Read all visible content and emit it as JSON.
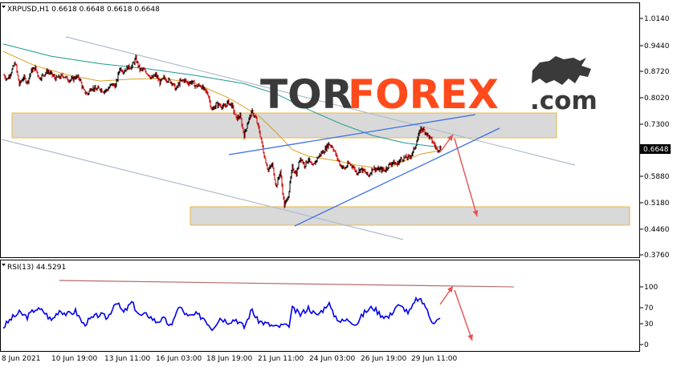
{
  "price_panel": {
    "header": "XRPUSD,H1  0.6618 0.6648 0.6618 0.6648",
    "current_price_label": "0.6648",
    "y_ticks": [
      "1.0140",
      "0.9440",
      "0.8720",
      "0.8020",
      "0.7300",
      "0.6580",
      "0.5880",
      "0.5180",
      "0.4460",
      "0.3760"
    ]
  },
  "rsi_panel": {
    "header": "RSI(13) 44.5291",
    "y_ticks": [
      "100",
      "70",
      "30",
      "0"
    ]
  },
  "x_ticks": [
    "8 Jun 2021",
    "10 Jun 19:00",
    "13 Jun 11:00",
    "16 Jun 03:00",
    "18 Jun 19:00",
    "21 Jun 11:00",
    "24 Jun 03:00",
    "26 Jun 19:00",
    "29 Jun 11:00"
  ],
  "watermark": {
    "part1": "TOR",
    "part2": "FOREX",
    "part3": ".com",
    "color_dark": "#3a3a3a",
    "color_accent": "#ff4a1c"
  },
  "colors": {
    "bull": "#000000",
    "bear": "#cc0000",
    "ma_fast": "#d8a020",
    "ma_slow": "#1a9a90",
    "trend_blue": "#3a6ee8",
    "channel_grey": "#b0bccd",
    "zone_fill": "#d9d9d9",
    "zone_border": "#e8b84a",
    "arrow": "#e85050",
    "rsi_line": "#0000ee",
    "rsi_resistance": "#b86b6b"
  },
  "chart_data": {
    "type": "candlestick",
    "symbol": "XRPUSD",
    "timeframe": "H1",
    "last_ohlc": {
      "open": 0.6618,
      "high": 0.6648,
      "low": 0.6618,
      "close": 0.6648
    },
    "ylim": [
      0.376,
      1.014
    ],
    "close_path": [
      [
        0,
        0.862
      ],
      [
        5,
        0.85
      ],
      [
        10,
        0.87
      ],
      [
        15,
        0.895
      ],
      [
        20,
        0.835
      ],
      [
        25,
        0.855
      ],
      [
        30,
        0.842
      ],
      [
        35,
        0.873
      ],
      [
        40,
        0.88
      ],
      [
        45,
        0.852
      ],
      [
        50,
        0.862
      ],
      [
        55,
        0.872
      ],
      [
        60,
        0.863
      ],
      [
        65,
        0.852
      ],
      [
        70,
        0.855
      ],
      [
        75,
        0.86
      ],
      [
        80,
        0.85
      ],
      [
        85,
        0.848
      ],
      [
        90,
        0.856
      ],
      [
        95,
        0.853
      ],
      [
        100,
        0.818
      ],
      [
        105,
        0.81
      ],
      [
        110,
        0.828
      ],
      [
        115,
        0.822
      ],
      [
        120,
        0.825
      ],
      [
        125,
        0.818
      ],
      [
        130,
        0.822
      ],
      [
        135,
        0.836
      ],
      [
        140,
        0.832
      ],
      [
        145,
        0.88
      ],
      [
        150,
        0.872
      ],
      [
        155,
        0.882
      ],
      [
        160,
        0.884
      ],
      [
        165,
        0.905
      ],
      [
        170,
        0.876
      ],
      [
        175,
        0.874
      ],
      [
        180,
        0.866
      ],
      [
        185,
        0.852
      ],
      [
        190,
        0.862
      ],
      [
        195,
        0.84
      ],
      [
        200,
        0.853
      ],
      [
        205,
        0.848
      ],
      [
        210,
        0.842
      ],
      [
        215,
        0.822
      ],
      [
        220,
        0.843
      ],
      [
        225,
        0.848
      ],
      [
        230,
        0.84
      ],
      [
        235,
        0.843
      ],
      [
        240,
        0.83
      ],
      [
        245,
        0.834
      ],
      [
        250,
        0.822
      ],
      [
        255,
        0.81
      ],
      [
        260,
        0.765
      ],
      [
        265,
        0.782
      ],
      [
        270,
        0.78
      ],
      [
        275,
        0.774
      ],
      [
        280,
        0.788
      ],
      [
        285,
        0.778
      ],
      [
        290,
        0.744
      ],
      [
        295,
        0.75
      ],
      [
        300,
        0.698
      ],
      [
        305,
        0.738
      ],
      [
        310,
        0.762
      ],
      [
        315,
        0.741
      ],
      [
        320,
        0.7
      ],
      [
        325,
        0.644
      ],
      [
        330,
        0.604
      ],
      [
        335,
        0.62
      ],
      [
        340,
        0.56
      ],
      [
        345,
        0.602
      ],
      [
        350,
        0.508
      ],
      [
        355,
        0.536
      ],
      [
        360,
        0.612
      ],
      [
        365,
        0.594
      ],
      [
        370,
        0.64
      ],
      [
        375,
        0.618
      ],
      [
        380,
        0.634
      ],
      [
        385,
        0.612
      ],
      [
        390,
        0.633
      ],
      [
        395,
        0.648
      ],
      [
        400,
        0.658
      ],
      [
        405,
        0.676
      ],
      [
        410,
        0.668
      ],
      [
        415,
        0.641
      ],
      [
        420,
        0.618
      ],
      [
        425,
        0.608
      ],
      [
        430,
        0.622
      ],
      [
        435,
        0.616
      ],
      [
        440,
        0.598
      ],
      [
        445,
        0.608
      ],
      [
        450,
        0.6
      ],
      [
        455,
        0.589
      ],
      [
        460,
        0.61
      ],
      [
        465,
        0.606
      ],
      [
        470,
        0.606
      ],
      [
        475,
        0.604
      ],
      [
        480,
        0.618
      ],
      [
        485,
        0.626
      ],
      [
        490,
        0.62
      ],
      [
        495,
        0.634
      ],
      [
        500,
        0.638
      ],
      [
        505,
        0.638
      ],
      [
        510,
        0.652
      ],
      [
        515,
        0.682
      ],
      [
        520,
        0.718
      ],
      [
        525,
        0.71
      ],
      [
        530,
        0.695
      ],
      [
        535,
        0.68
      ],
      [
        540,
        0.66
      ],
      [
        545,
        0.665
      ]
    ],
    "ma_fast": [
      [
        0,
        0.925
      ],
      [
        40,
        0.886
      ],
      [
        80,
        0.862
      ],
      [
        120,
        0.845
      ],
      [
        160,
        0.85
      ],
      [
        200,
        0.852
      ],
      [
        240,
        0.838
      ],
      [
        280,
        0.8
      ],
      [
        300,
        0.775
      ],
      [
        320,
        0.748
      ],
      [
        340,
        0.706
      ],
      [
        360,
        0.66
      ],
      [
        380,
        0.642
      ],
      [
        400,
        0.635
      ],
      [
        420,
        0.628
      ],
      [
        440,
        0.618
      ],
      [
        460,
        0.612
      ],
      [
        480,
        0.61
      ],
      [
        500,
        0.63
      ],
      [
        520,
        0.648
      ],
      [
        545,
        0.658
      ]
    ],
    "ma_slow": [
      [
        0,
        0.945
      ],
      [
        60,
        0.912
      ],
      [
        120,
        0.892
      ],
      [
        180,
        0.878
      ],
      [
        240,
        0.86
      ],
      [
        300,
        0.838
      ],
      [
        340,
        0.81
      ],
      [
        380,
        0.768
      ],
      [
        420,
        0.73
      ],
      [
        460,
        0.698
      ],
      [
        500,
        0.678
      ],
      [
        545,
        0.666
      ]
    ],
    "rsi": [
      [
        0,
        30
      ],
      [
        10,
        45
      ],
      [
        20,
        55
      ],
      [
        30,
        48
      ],
      [
        40,
        62
      ],
      [
        50,
        58
      ],
      [
        60,
        42
      ],
      [
        70,
        60
      ],
      [
        80,
        52
      ],
      [
        90,
        58
      ],
      [
        100,
        35
      ],
      [
        110,
        45
      ],
      [
        120,
        52
      ],
      [
        130,
        46
      ],
      [
        140,
        75
      ],
      [
        150,
        55
      ],
      [
        160,
        73
      ],
      [
        170,
        50
      ],
      [
        180,
        52
      ],
      [
        190,
        40
      ],
      [
        200,
        44
      ],
      [
        210,
        30
      ],
      [
        215,
        58
      ],
      [
        220,
        65
      ],
      [
        230,
        48
      ],
      [
        240,
        52
      ],
      [
        250,
        46
      ],
      [
        260,
        28
      ],
      [
        270,
        46
      ],
      [
        280,
        40
      ],
      [
        290,
        44
      ],
      [
        300,
        30
      ],
      [
        310,
        62
      ],
      [
        315,
        44
      ],
      [
        320,
        40
      ],
      [
        330,
        35
      ],
      [
        340,
        30
      ],
      [
        350,
        34
      ],
      [
        355,
        28
      ],
      [
        360,
        62
      ],
      [
        370,
        52
      ],
      [
        380,
        64
      ],
      [
        390,
        50
      ],
      [
        400,
        63
      ],
      [
        405,
        74
      ],
      [
        410,
        55
      ],
      [
        420,
        40
      ],
      [
        430,
        43
      ],
      [
        440,
        36
      ],
      [
        450,
        56
      ],
      [
        460,
        65
      ],
      [
        470,
        52
      ],
      [
        480,
        47
      ],
      [
        490,
        68
      ],
      [
        500,
        62
      ],
      [
        505,
        55
      ],
      [
        510,
        66
      ],
      [
        515,
        80
      ],
      [
        520,
        75
      ],
      [
        525,
        70
      ],
      [
        530,
        50
      ],
      [
        535,
        40
      ],
      [
        545,
        44
      ]
    ]
  }
}
